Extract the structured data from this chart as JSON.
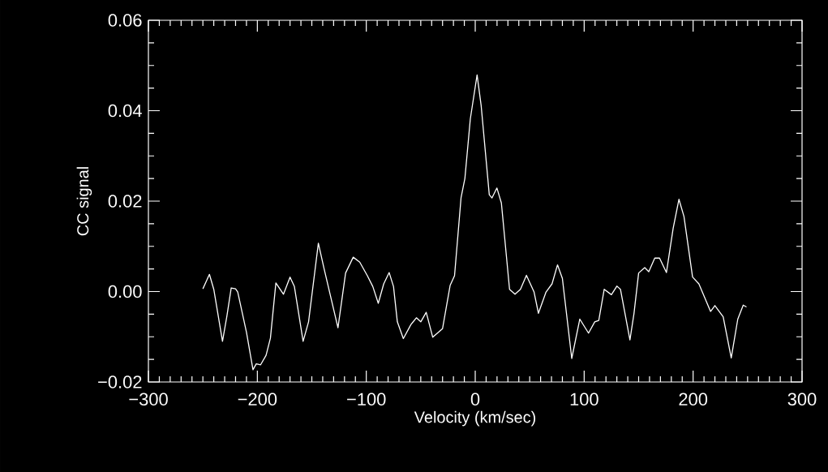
{
  "chart_data": {
    "type": "line",
    "xlabel": "Velocity (km/sec)",
    "ylabel": "CC signal",
    "x": [
      -250,
      -244,
      -240,
      -232,
      -228,
      -224,
      -220,
      -218,
      -210,
      -204,
      -201,
      -197,
      -192,
      -188,
      -183,
      -176,
      -170,
      -166,
      -158,
      -153,
      -144,
      -139,
      -126,
      -119,
      -112,
      -106,
      -99,
      -94,
      -89,
      -84,
      -79,
      -75,
      -71.5,
      -66,
      -59,
      -54,
      -50,
      -45,
      -39,
      -30,
      -23,
      -19,
      -13,
      -9.5,
      -4.5,
      1.7,
      5.4,
      12.9,
      15.4,
      19.9,
      24,
      31.5,
      36.5,
      41.5,
      47,
      54,
      58,
      65,
      70.5,
      75.5,
      80,
      88.6,
      96,
      104,
      109.7,
      113.4,
      118.4,
      125,
      130,
      133.3,
      142,
      145.7,
      150,
      155.6,
      159.3,
      164.8,
      169.2,
      175.5,
      181.7,
      187,
      191.6,
      199.5,
      205.3,
      209,
      216,
      220,
      227.6,
      235,
      241,
      246,
      249
    ],
    "series": [
      {
        "color": "#ffffff",
        "values": [
          0.0006,
          0.0038,
          0.0005,
          -0.011,
          -0.0055,
          0.0008,
          0.0006,
          -0.0001,
          -0.009,
          -0.0173,
          -0.016,
          -0.0162,
          -0.0141,
          -0.0103,
          0.0019,
          -0.0006,
          0.0032,
          0.0011,
          -0.011,
          -0.0067,
          0.0107,
          0.0053,
          -0.008,
          0.0041,
          0.0076,
          0.0065,
          0.0035,
          0.0011,
          -0.0026,
          0.0017,
          0.0042,
          0.0011,
          -0.0067,
          -0.0104,
          -0.0073,
          -0.0058,
          -0.0067,
          -0.0046,
          -0.0101,
          -0.0082,
          0.0014,
          0.0035,
          0.0208,
          0.025,
          0.0382,
          0.0479,
          0.0412,
          0.0214,
          0.0207,
          0.0229,
          0.0196,
          0.0005,
          -0.0006,
          0.0005,
          0.0036,
          -0.0001,
          -0.0048,
          -0.0001,
          0.0017,
          0.0059,
          0.0029,
          -0.0148,
          -0.0061,
          -0.0092,
          -0.0067,
          -0.0064,
          0.0005,
          -0.0007,
          0.0012,
          0.0005,
          -0.0107,
          -0.0049,
          0.0041,
          0.0053,
          0.0044,
          0.0074,
          0.0074,
          0.0042,
          0.014,
          0.0204,
          0.0166,
          0.0032,
          0.0017,
          -0.0004,
          -0.0044,
          -0.0031,
          -0.0056,
          -0.0147,
          -0.0061,
          -0.003,
          -0.0034
        ]
      }
    ],
    "xlim": [
      -300,
      300
    ],
    "ylim": [
      -0.02,
      0.06
    ],
    "xticks": [
      {
        "value": -300,
        "label": "−300"
      },
      {
        "value": -200,
        "label": "−200"
      },
      {
        "value": -100,
        "label": "−100"
      },
      {
        "value": 0,
        "label": "0"
      },
      {
        "value": 100,
        "label": "100"
      },
      {
        "value": 200,
        "label": "200"
      },
      {
        "value": 300,
        "label": "300"
      }
    ],
    "yticks": [
      {
        "value": -0.02,
        "label": "−0.02"
      },
      {
        "value": 0,
        "label": "0.00"
      },
      {
        "value": 0.02,
        "label": "0.02"
      },
      {
        "value": 0.04,
        "label": "0.04"
      },
      {
        "value": 0.06,
        "label": "0.06"
      }
    ],
    "line_style": "solid"
  }
}
